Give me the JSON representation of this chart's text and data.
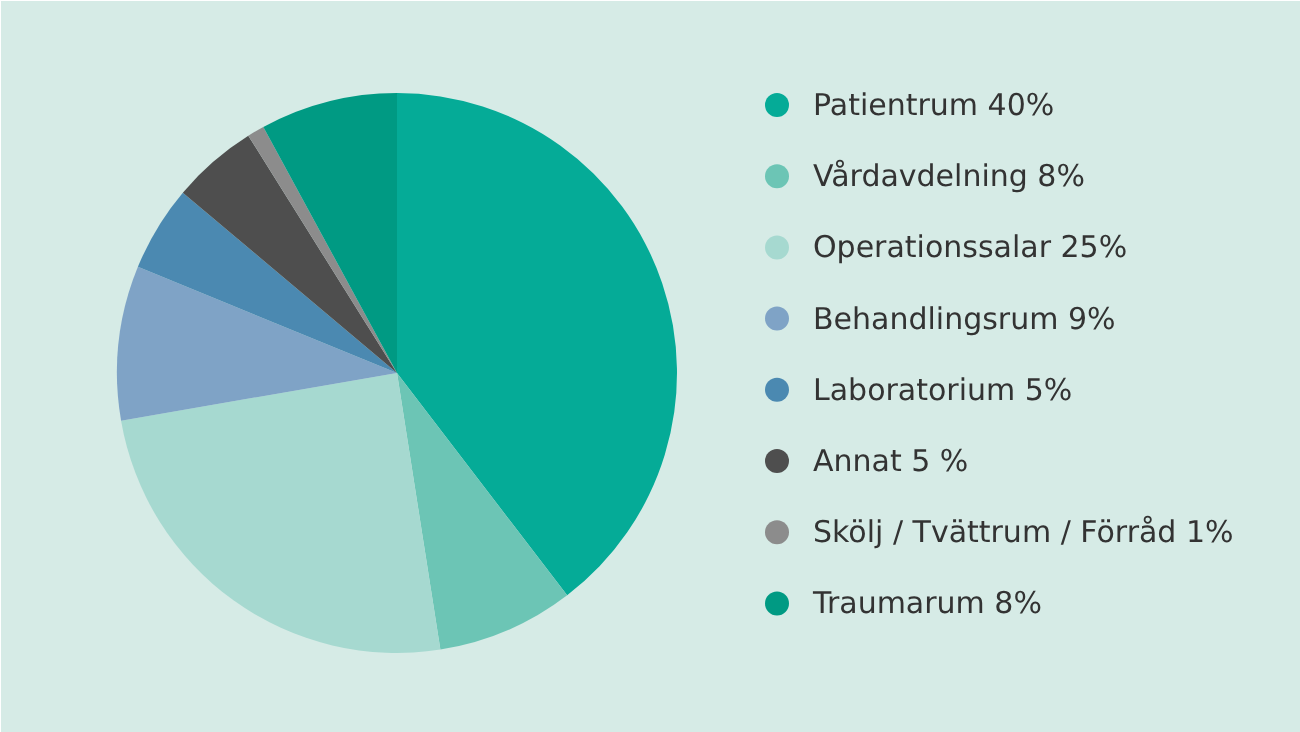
{
  "chart_data": {
    "type": "pie",
    "legend": "right",
    "categories": [
      "Patientrum 40%",
      "Vårdavdelning 8%",
      "Operationssalar 25%",
      "Behandlingsrum 9%",
      "Laboratorium 5%",
      "Annat 5 %",
      "Skölj / Tvättrum / Förråd 1%",
      "Traumarum 8%"
    ],
    "values": [
      40,
      8,
      25,
      9,
      5,
      5,
      1,
      8
    ],
    "colors": [
      "#05ab97",
      "#6cc5b5",
      "#a6d9d0",
      "#7fa3c6",
      "#4b89b1",
      "#4e4e4e",
      "#8c8c8c",
      "#009a83"
    ]
  }
}
